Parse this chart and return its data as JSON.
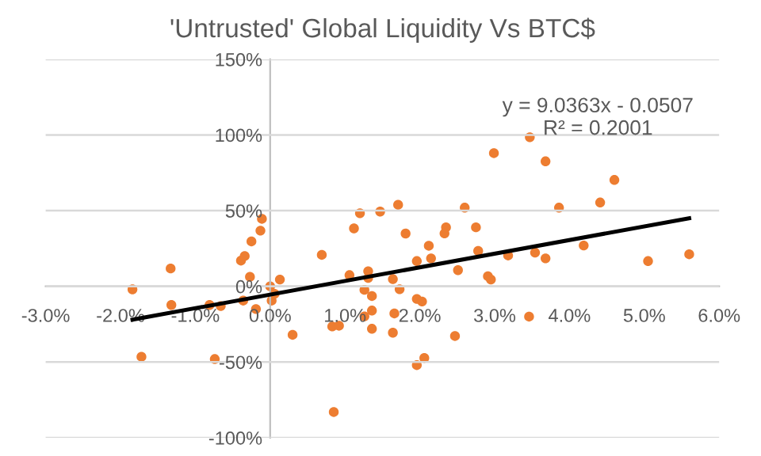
{
  "chart_data": {
    "type": "scatter",
    "title": "'Untrusted' Global Liquidity Vs BTC$",
    "xlim": [
      -3,
      6
    ],
    "ylim": [
      -100,
      150
    ],
    "xticks": [
      {
        "value": -3,
        "label": "-3.0%"
      },
      {
        "value": -2,
        "label": "-2.0%"
      },
      {
        "value": -1,
        "label": "-1.0%"
      },
      {
        "value": 0,
        "label": "0.0%"
      },
      {
        "value": 1,
        "label": "1.0%"
      },
      {
        "value": 2,
        "label": "2.0%"
      },
      {
        "value": 3,
        "label": "3.0%"
      },
      {
        "value": 4,
        "label": "4.0%"
      },
      {
        "value": 5,
        "label": "5.0%"
      },
      {
        "value": 6,
        "label": "6.0%"
      }
    ],
    "yticks": [
      {
        "value": -100,
        "label": "-100%"
      },
      {
        "value": -50,
        "label": "-50%"
      },
      {
        "value": 0,
        "label": "0%"
      },
      {
        "value": 50,
        "label": "50%"
      },
      {
        "value": 100,
        "label": "100%"
      },
      {
        "value": 150,
        "label": "150%"
      }
    ],
    "grid": "y",
    "legend": false,
    "marker": "circle",
    "annotations": [
      "y = 9.0363x - 0.0507\nR² = 0.2001"
    ],
    "series": [
      {
        "color": "#ed7d31",
        "x": [
          -1.84,
          -1.72,
          -1.33,
          -1.32,
          -0.81,
          -0.74,
          -0.66,
          -0.39,
          -0.34,
          -0.27,
          -0.36,
          -0.19,
          0.0,
          0.02,
          0.06,
          0.13,
          0.3,
          0.69,
          0.85,
          0.83,
          0.92,
          1.06,
          1.31,
          1.31,
          1.26,
          1.36,
          1.26,
          1.36,
          1.36,
          -0.11,
          -0.13,
          -0.25,
          1.12,
          1.2,
          1.47,
          1.71,
          1.81,
          2.12,
          2.15,
          1.96,
          2.35,
          2.33,
          2.6,
          2.75,
          2.78,
          2.99,
          3.47,
          3.68,
          3.18,
          3.54,
          3.68,
          3.86,
          4.19,
          4.41,
          4.6,
          5.05,
          5.6,
          1.64,
          1.73,
          1.96,
          2.03,
          1.66,
          1.64,
          1.96,
          2.06,
          2.51,
          2.47,
          2.91,
          2.95,
          3.46
        ],
        "values": [
          -2,
          -46.5,
          11.8,
          -12.3,
          -12.3,
          -48,
          -13,
          17,
          20,
          6.3,
          -9.4,
          -15,
          0,
          -9.4,
          -4.9,
          4.5,
          -32,
          20.8,
          -83,
          -26.5,
          -26,
          7.4,
          10,
          5.6,
          -2.3,
          -6.4,
          -19.8,
          -16,
          -28,
          44.6,
          36.8,
          29.7,
          38.3,
          48.3,
          49.4,
          53.9,
          34.9,
          26.8,
          18.5,
          16.7,
          39,
          35,
          52,
          39,
          23.4,
          88,
          98.5,
          82.6,
          20.4,
          22.3,
          18.5,
          52,
          27,
          55.4,
          70.3,
          16.7,
          21.2,
          4.8,
          -1.9,
          -8.3,
          -10,
          -17.9,
          -30.6,
          -52,
          -47.3,
          10.7,
          -32.8,
          6.7,
          4.5,
          -20
        ]
      },
      {
        "type": "line",
        "color": "#000000",
        "marker": "none",
        "line_style": "solid",
        "x": [
          -1.84,
          5.6
        ],
        "values": [
          -22,
          45
        ]
      }
    ]
  }
}
